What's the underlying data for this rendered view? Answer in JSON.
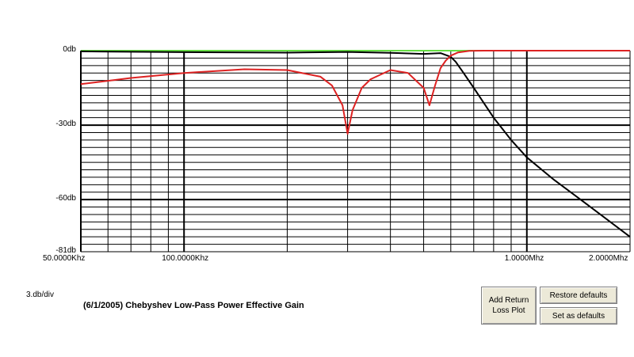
{
  "chart_data": {
    "type": "line",
    "title": "(6/1/2005) Chebyshev Low-Pass Power Effective Gain",
    "scale_label": "3.db/div",
    "x_scale": "log",
    "xlim_hz": [
      50000,
      2000000
    ],
    "ylim_db": [
      -81,
      0
    ],
    "grid": true,
    "y_tick_labels": [
      {
        "value": 0,
        "label": "0db"
      },
      {
        "value": -30,
        "label": "-30db"
      },
      {
        "value": -60,
        "label": "-60db"
      },
      {
        "value": -81,
        "label": "-81db"
      }
    ],
    "x_tick_labels": [
      {
        "value": 50000,
        "label": "50.0000Khz"
      },
      {
        "value": 100000,
        "label": "100.0000Khz"
      },
      {
        "value": 1000000,
        "label": "1.0000Mhz"
      },
      {
        "value": 2000000,
        "label": "2.0000Mhz"
      }
    ],
    "series": [
      {
        "color": "#66dd44",
        "x": [
          50000,
          2000000
        ],
        "y": [
          0,
          0
        ]
      },
      {
        "color": "#000000",
        "x": [
          50000,
          100000,
          200000,
          300000,
          400000,
          500000,
          560000,
          600000,
          620000,
          650000,
          700000,
          800000,
          900000,
          1000000,
          1200000,
          1500000,
          2000000
        ],
        "y": [
          -0.3,
          -0.6,
          -0.8,
          -0.5,
          -0.9,
          -1.3,
          -1.0,
          -2.5,
          -4.5,
          -8.5,
          -15,
          -27,
          -36,
          -43,
          -52,
          -62,
          -75
        ]
      },
      {
        "color": "#dd2222",
        "x": [
          50000,
          70000,
          100000,
          150000,
          200000,
          250000,
          270000,
          290000,
          300000,
          310000,
          330000,
          350000,
          400000,
          450000,
          500000,
          520000,
          540000,
          560000,
          580000,
          600000,
          630000,
          680000,
          750000,
          2000000
        ],
        "y": [
          -13.5,
          -11,
          -9,
          -7.5,
          -7.8,
          -10.5,
          -14,
          -22,
          -33.5,
          -24,
          -15,
          -11.5,
          -7.8,
          -9,
          -15,
          -22,
          -14,
          -7,
          -4,
          -2,
          -0.7,
          -0.1,
          0,
          0
        ]
      }
    ]
  },
  "buttons": {
    "add_return_loss": "Add Return Loss Plot",
    "restore_defaults": "Restore defaults",
    "set_as_defaults": "Set as defaults"
  }
}
